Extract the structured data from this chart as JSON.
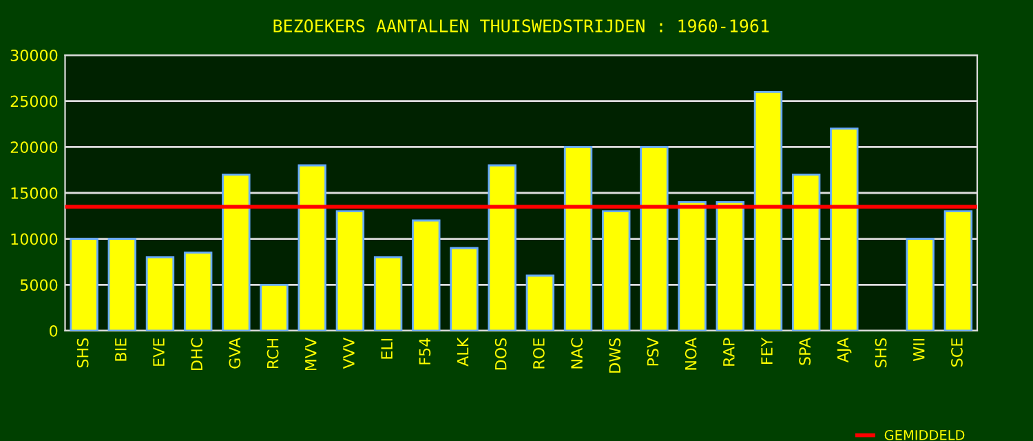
{
  "chart_data": {
    "type": "bar",
    "title": "BEZOEKERS AANTALLEN THUISWEDSTRIJDEN : 1960-1961",
    "categories": [
      "SHS",
      "BIE",
      "EVE",
      "DHC",
      "GVA",
      "RCH",
      "MVV",
      "VVV",
      "ELI",
      "F54",
      "ALK",
      "DOS",
      "ROE",
      "NAC",
      "DWS",
      "PSV",
      "NOA",
      "RAP",
      "FEY",
      "SPA",
      "AJA",
      "SHS",
      "WII",
      "SCE"
    ],
    "values": [
      10000,
      10000,
      8000,
      8500,
      17000,
      5000,
      18000,
      13000,
      8000,
      12000,
      9000,
      18000,
      6000,
      20000,
      13000,
      20000,
      14000,
      14000,
      26000,
      17000,
      22000,
      null,
      10000,
      13000
    ],
    "color": "#ffff00",
    "ylim": [
      0,
      30000
    ],
    "yticks": [
      0,
      5000,
      10000,
      15000,
      20000,
      25000,
      30000
    ],
    "grid": "y",
    "ref_lines": [
      {
        "axis": "y",
        "value": 13500,
        "label": "GEMIDDELD",
        "color": "#ff0000"
      }
    ],
    "legend": "bottom right"
  }
}
